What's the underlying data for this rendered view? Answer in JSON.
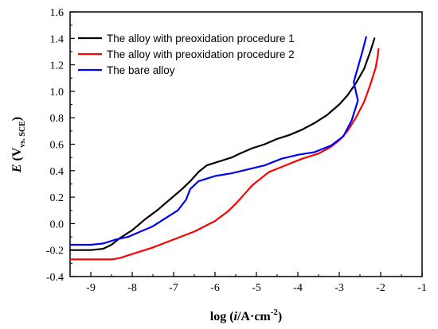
{
  "chart_data": {
    "type": "line",
    "xlim": [
      -9.5,
      -1
    ],
    "ylim": [
      -0.4,
      1.6
    ],
    "x_ticks": [
      -9,
      -8,
      -7,
      -6,
      -5,
      -4,
      -3,
      -2,
      -1
    ],
    "y_ticks": [
      -0.4,
      -0.2,
      0.0,
      0.2,
      0.4,
      0.6,
      0.8,
      1.0,
      1.2,
      1.4,
      1.6
    ],
    "x_tick_labels": [
      "-9",
      "-8",
      "-7",
      "-6",
      "-5",
      "-4",
      "-3",
      "-2",
      "-1"
    ],
    "y_tick_labels": [
      "-0.4",
      "-0.2",
      "0.0",
      "0.2",
      "0.4",
      "0.6",
      "0.8",
      "1.0",
      "1.2",
      "1.4",
      "1.6"
    ],
    "xlabel": {
      "prefix": "log (",
      "italic": "i",
      "unit": "/A·cm",
      "sup": "-2",
      "suffix": ")"
    },
    "ylabel": {
      "italic": "E",
      "open": " (V",
      "sub": "vs. SCE",
      "close": ")"
    },
    "legend_position": "top-left",
    "grid": false,
    "series": [
      {
        "name": "The alloy with preoxidation procedure 1",
        "color": "#000000",
        "points": [
          [
            -9.5,
            -0.2
          ],
          [
            -9.0,
            -0.2
          ],
          [
            -8.7,
            -0.19
          ],
          [
            -8.5,
            -0.16
          ],
          [
            -8.3,
            -0.11
          ],
          [
            -8.0,
            -0.05
          ],
          [
            -7.7,
            0.03
          ],
          [
            -7.4,
            0.1
          ],
          [
            -7.1,
            0.18
          ],
          [
            -6.8,
            0.26
          ],
          [
            -6.6,
            0.32
          ],
          [
            -6.4,
            0.39
          ],
          [
            -6.2,
            0.44
          ],
          [
            -6.0,
            0.46
          ],
          [
            -5.8,
            0.48
          ],
          [
            -5.6,
            0.5
          ],
          [
            -5.4,
            0.53
          ],
          [
            -5.1,
            0.57
          ],
          [
            -4.8,
            0.6
          ],
          [
            -4.5,
            0.64
          ],
          [
            -4.2,
            0.67
          ],
          [
            -3.9,
            0.71
          ],
          [
            -3.6,
            0.76
          ],
          [
            -3.3,
            0.82
          ],
          [
            -3.0,
            0.9
          ],
          [
            -2.8,
            0.97
          ],
          [
            -2.6,
            1.06
          ],
          [
            -2.4,
            1.17
          ],
          [
            -2.25,
            1.3
          ],
          [
            -2.15,
            1.4
          ]
        ]
      },
      {
        "name": "The alloy with preoxidation procedure 2",
        "color": "#ff0000",
        "points": [
          [
            -9.5,
            -0.27
          ],
          [
            -9.0,
            -0.27
          ],
          [
            -8.5,
            -0.27
          ],
          [
            -8.3,
            -0.26
          ],
          [
            -8.0,
            -0.23
          ],
          [
            -7.5,
            -0.18
          ],
          [
            -7.0,
            -0.12
          ],
          [
            -6.5,
            -0.06
          ],
          [
            -6.0,
            0.02
          ],
          [
            -5.7,
            0.09
          ],
          [
            -5.5,
            0.15
          ],
          [
            -5.3,
            0.22
          ],
          [
            -5.1,
            0.29
          ],
          [
            -4.9,
            0.34
          ],
          [
            -4.7,
            0.39
          ],
          [
            -4.3,
            0.44
          ],
          [
            -3.9,
            0.49
          ],
          [
            -3.5,
            0.53
          ],
          [
            -3.2,
            0.58
          ],
          [
            -3.0,
            0.63
          ],
          [
            -2.8,
            0.7
          ],
          [
            -2.6,
            0.8
          ],
          [
            -2.4,
            0.92
          ],
          [
            -2.25,
            1.05
          ],
          [
            -2.12,
            1.18
          ],
          [
            -2.07,
            1.27
          ],
          [
            -2.05,
            1.32
          ]
        ]
      },
      {
        "name": "The bare alloy",
        "color": "#0000ff",
        "points": [
          [
            -9.5,
            -0.16
          ],
          [
            -9.0,
            -0.16
          ],
          [
            -8.7,
            -0.15
          ],
          [
            -8.4,
            -0.12
          ],
          [
            -8.1,
            -0.1
          ],
          [
            -7.8,
            -0.06
          ],
          [
            -7.5,
            -0.02
          ],
          [
            -7.2,
            0.04
          ],
          [
            -6.9,
            0.1
          ],
          [
            -6.7,
            0.18
          ],
          [
            -6.6,
            0.26
          ],
          [
            -6.4,
            0.32
          ],
          [
            -6.2,
            0.34
          ],
          [
            -6.0,
            0.36
          ],
          [
            -5.6,
            0.38
          ],
          [
            -5.2,
            0.41
          ],
          [
            -4.8,
            0.44
          ],
          [
            -4.4,
            0.49
          ],
          [
            -4.0,
            0.52
          ],
          [
            -3.6,
            0.54
          ],
          [
            -3.2,
            0.59
          ],
          [
            -2.9,
            0.66
          ],
          [
            -2.7,
            0.78
          ],
          [
            -2.6,
            0.88
          ],
          [
            -2.55,
            0.93
          ],
          [
            -2.6,
            1.0
          ],
          [
            -2.65,
            1.07
          ],
          [
            -2.55,
            1.18
          ],
          [
            -2.45,
            1.29
          ],
          [
            -2.35,
            1.41
          ]
        ]
      }
    ]
  }
}
